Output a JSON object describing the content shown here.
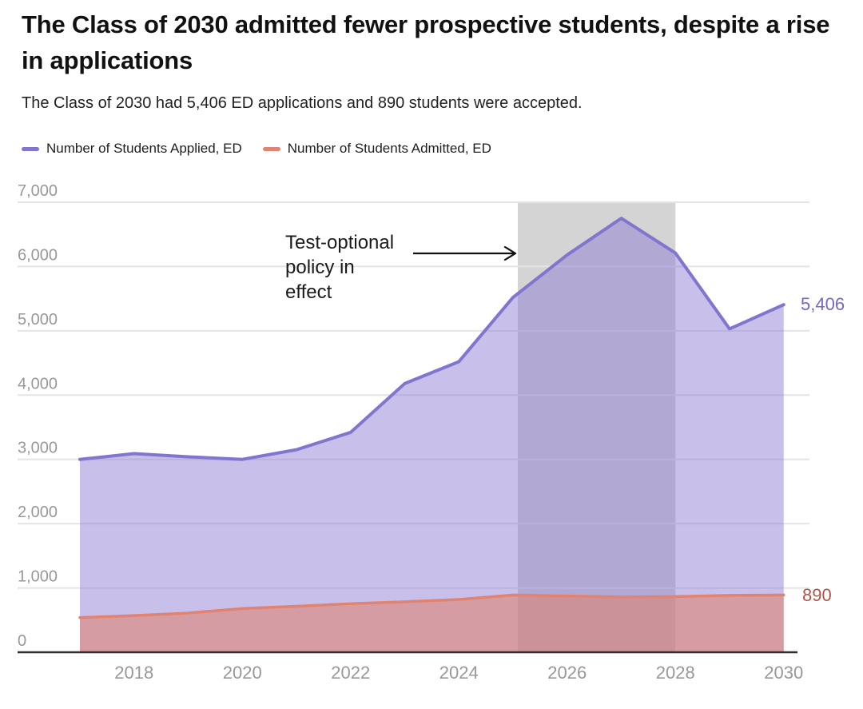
{
  "header": {
    "title": "The Class of 2030 admitted fewer prospective students, despite a rise in applications",
    "subtitle": "The Class of 2030 had 5,406 ED applications and 890 students were accepted."
  },
  "chart_data": {
    "type": "area",
    "title": "The Class of 2030 admitted fewer prospective students, despite a rise in applications",
    "subtitle": "The Class of 2030 had 5,406 ED applications and 890 students were accepted.",
    "x": [
      2017,
      2018,
      2019,
      2020,
      2021,
      2022,
      2023,
      2024,
      2025,
      2026,
      2027,
      2028,
      2029,
      2030
    ],
    "series": [
      {
        "name": "Number of Students Applied, ED",
        "color": "#8176CE",
        "fill": "rgba(139,121,214,0.48)",
        "values": [
          3000,
          3090,
          3040,
          3000,
          3150,
          3420,
          4180,
          4520,
          5520,
          6180,
          6750,
          6210,
          5030,
          5406
        ],
        "end_label": "5,406",
        "end_label_color": "#7668C4"
      },
      {
        "name": "Number of Students Admitted, ED",
        "color": "#E08471",
        "fill": "rgba(225,128,105,0.55)",
        "values": [
          540,
          570,
          610,
          680,
          715,
          755,
          785,
          820,
          890,
          875,
          860,
          865,
          885,
          890
        ],
        "end_label": "890",
        "end_label_color": "#B2544A"
      }
    ],
    "xlim": [
      2017,
      2030
    ],
    "ylim": [
      0,
      7000
    ],
    "grid": true,
    "legend_position": "top",
    "y_ticks": [
      {
        "value": 0,
        "label": "0"
      },
      {
        "value": 1000,
        "label": "1,000"
      },
      {
        "value": 2000,
        "label": "2,000"
      },
      {
        "value": 3000,
        "label": "3,000"
      },
      {
        "value": 4000,
        "label": "4,000"
      },
      {
        "value": 5000,
        "label": "5,000"
      },
      {
        "value": 6000,
        "label": "6,000"
      },
      {
        "value": 7000,
        "label": "7,000"
      }
    ],
    "x_ticks": [
      {
        "value": 2018,
        "label": "2018"
      },
      {
        "value": 2020,
        "label": "2020"
      },
      {
        "value": 2022,
        "label": "2022"
      },
      {
        "value": 2024,
        "label": "2024"
      },
      {
        "value": 2026,
        "label": "2026"
      },
      {
        "value": 2028,
        "label": "2028"
      },
      {
        "value": 2030,
        "label": "2030"
      }
    ],
    "shaded_region": {
      "from": 2025,
      "to": 2028,
      "color": "#D4D4D4"
    },
    "annotation": {
      "lines": [
        "Test-optional",
        "policy in",
        "effect"
      ]
    }
  },
  "colors": {
    "background": "#FFFFFF",
    "gridline": "#E4E4E4",
    "axis_line": "#2F2F2F",
    "tick_label": "#989898",
    "annotation_text": "#1A1A1A",
    "arrow": "#111111"
  }
}
